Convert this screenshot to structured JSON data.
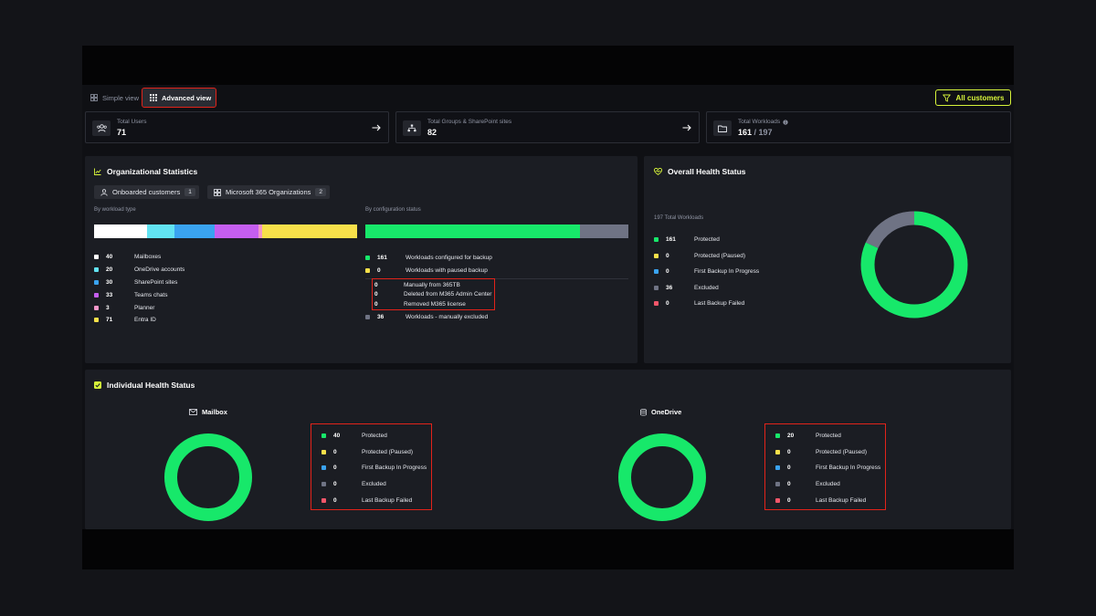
{
  "colors": {
    "accent": "#d7f43a",
    "green": "#17e86a",
    "yellow": "#f7e04a",
    "blue": "#3aa3f0",
    "gray": "#6f7384",
    "red": "#f2566a",
    "white": "#ffffff",
    "cyan": "#62e3f2",
    "purple": "#c55ef0",
    "pink": "#f296c8"
  },
  "view_switch": {
    "simple_label": "Simple view",
    "advanced_label": "Advanced view",
    "filter_label": "All customers",
    "simple_icon": "grid-icon",
    "advanced_icon": "grid-dots-icon",
    "filter_icon": "filter-icon"
  },
  "summary_cards": [
    {
      "label": "Total Users",
      "value": "71",
      "icon": "users-icon"
    },
    {
      "label": "Total Groups & SharePoint sites",
      "value": "82",
      "icon": "sitemap-icon"
    },
    {
      "label": "Total Workloads",
      "value": "161",
      "value_suffix": " / 197",
      "icon": "folder-icon"
    }
  ],
  "org_stats": {
    "title": "Organizational Statistics",
    "chips": [
      {
        "label": "Onboarded customers",
        "count": "1"
      },
      {
        "label": "Microsoft 365 Organizations",
        "count": "2"
      }
    ],
    "by_workload_label": "By workload type",
    "by_config_label": "By configuration status",
    "workload_types": [
      {
        "count": 40,
        "label": "Mailboxes",
        "color": "#ffffff"
      },
      {
        "count": 20,
        "label": "OneDrive accounts",
        "color": "#62e3f2"
      },
      {
        "count": 30,
        "label": "SharePoint sites",
        "color": "#3aa3f0"
      },
      {
        "count": 33,
        "label": "Teams chats",
        "color": "#c55ef0"
      },
      {
        "count": 3,
        "label": "Planner",
        "color": "#f296c8"
      },
      {
        "count": 71,
        "label": "Entra ID",
        "color": "#f7e04a"
      }
    ],
    "config_status": [
      {
        "count": 161,
        "label": "Workloads configured for backup",
        "color": "#17e86a"
      },
      {
        "count": 0,
        "label": "Workloads with paused backup",
        "color": "#f7e04a"
      }
    ],
    "config_sub": [
      {
        "count": 0,
        "label": "Manually from 365TB"
      },
      {
        "count": 0,
        "label": "Deleted from M365 Admin Center"
      },
      {
        "count": 0,
        "label": "Removed M365 license"
      }
    ],
    "excluded": {
      "count": 36,
      "label": "Workloads - manually excluded",
      "color": "#6f7384"
    }
  },
  "overall_health": {
    "title": "Overall Health Status",
    "total_label": "197 Total Workloads",
    "items": [
      {
        "count": 161,
        "label": "Protected",
        "color": "#17e86a"
      },
      {
        "count": 0,
        "label": "Protected (Paused)",
        "color": "#f7e04a"
      },
      {
        "count": 0,
        "label": "First Backup In Progress",
        "color": "#3aa3f0"
      },
      {
        "count": 36,
        "label": "Excluded",
        "color": "#6f7384"
      },
      {
        "count": 0,
        "label": "Last Backup Failed",
        "color": "#f2566a"
      }
    ]
  },
  "individual_health": {
    "title": "Individual Health Status",
    "sections": [
      {
        "name": "Mailbox",
        "icon": "mail-icon",
        "items": [
          {
            "count": 40,
            "label": "Protected",
            "color": "#17e86a"
          },
          {
            "count": 0,
            "label": "Protected (Paused)",
            "color": "#f7e04a"
          },
          {
            "count": 0,
            "label": "First Backup In Progress",
            "color": "#3aa3f0"
          },
          {
            "count": 0,
            "label": "Excluded",
            "color": "#6f7384"
          },
          {
            "count": 0,
            "label": "Last Backup Failed",
            "color": "#f2566a"
          }
        ]
      },
      {
        "name": "OneDrive",
        "icon": "database-icon",
        "items": [
          {
            "count": 20,
            "label": "Protected",
            "color": "#17e86a"
          },
          {
            "count": 0,
            "label": "Protected (Paused)",
            "color": "#f7e04a"
          },
          {
            "count": 0,
            "label": "First Backup In Progress",
            "color": "#3aa3f0"
          },
          {
            "count": 0,
            "label": "Excluded",
            "color": "#6f7384"
          },
          {
            "count": 0,
            "label": "Last Backup Failed",
            "color": "#f2566a"
          }
        ]
      }
    ]
  }
}
